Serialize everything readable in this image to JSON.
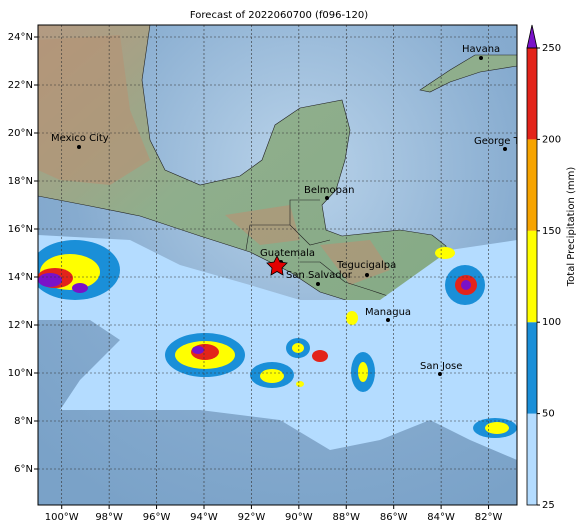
{
  "title": "Forecast of 2022060700 (f096-120)",
  "xlim": [
    -101,
    -80.8
  ],
  "ylim": [
    4.5,
    24.5
  ],
  "xticks": [
    {
      "value": -100,
      "label": "100°W"
    },
    {
      "value": -98,
      "label": "98°W"
    },
    {
      "value": -96,
      "label": "96°W"
    },
    {
      "value": -94,
      "label": "94°W"
    },
    {
      "value": -92,
      "label": "92°W"
    },
    {
      "value": -90,
      "label": "90°W"
    },
    {
      "value": -88,
      "label": "88°W"
    },
    {
      "value": -86,
      "label": "86°W"
    },
    {
      "value": -84,
      "label": "84°W"
    },
    {
      "value": -82,
      "label": "82°W"
    }
  ],
  "yticks": [
    {
      "value": 6,
      "label": "6°N"
    },
    {
      "value": 8,
      "label": "8°N"
    },
    {
      "value": 10,
      "label": "10°N"
    },
    {
      "value": 12,
      "label": "12°N"
    },
    {
      "value": 14,
      "label": "14°N"
    },
    {
      "value": 16,
      "label": "16°N"
    },
    {
      "value": 18,
      "label": "18°N"
    },
    {
      "value": 20,
      "label": "20°N"
    },
    {
      "value": 22,
      "label": "22°N"
    },
    {
      "value": 24,
      "label": "24°N"
    }
  ],
  "cities": [
    "Havana",
    "Mexico City",
    "George Tov",
    "Belmopan",
    "Guatemala",
    "Tegucigalpa",
    "San Salvador",
    "Managua",
    "San Jose"
  ],
  "colorbar": {
    "label": "Total Precipitation (mm)",
    "levels": [
      25,
      50,
      100,
      150,
      200,
      250
    ],
    "colors": [
      "#b4dcff",
      "#1a8fd8",
      "#ffff00",
      "#f7a400",
      "#e3241a"
    ],
    "extend_color": "#7a12c8"
  }
}
